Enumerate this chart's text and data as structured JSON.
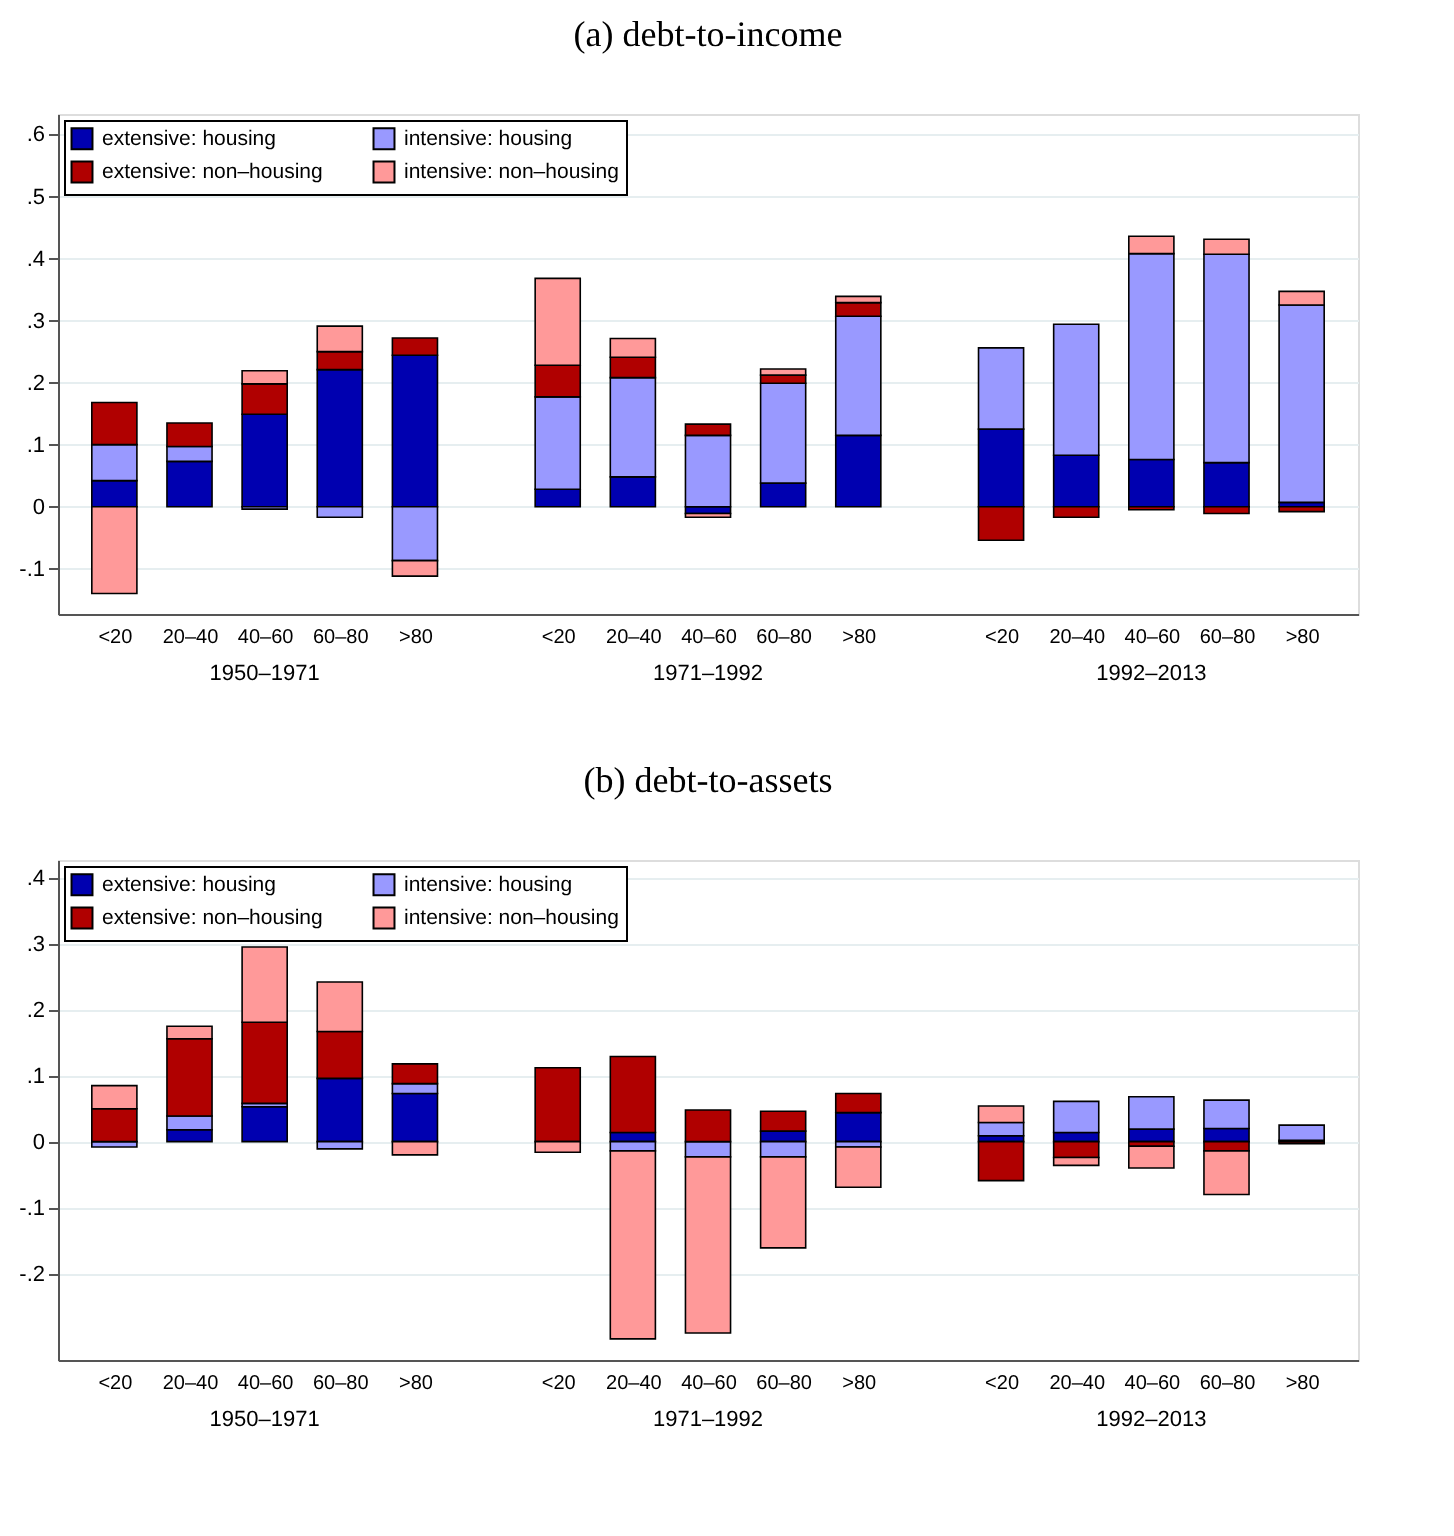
{
  "chart_data": [
    {
      "type": "bar",
      "title": "(a) debt-to-income",
      "stacked": true,
      "legend": "top left",
      "grid": "y",
      "categories": [
        "<20",
        "20–40",
        "40–60",
        "60–80",
        ">80",
        "<20",
        "20–40",
        "40–60",
        "60–80",
        ">80",
        "<20",
        "20–40",
        "40–60",
        "60–80",
        ">80"
      ],
      "annotations": [
        "1950–1971",
        "1971–1992",
        "1992–2013"
      ],
      "ylim": [
        -0.173,
        0.633
      ],
      "yticks": [
        {
          "value": -0.1,
          "label": "-.1"
        },
        0,
        {
          "value": 0.1,
          "label": ".1"
        },
        {
          "value": 0.2,
          "label": ".2"
        },
        {
          "value": 0.3,
          "label": ".3"
        },
        {
          "value": 0.4,
          "label": ".4"
        },
        {
          "value": 0.5,
          "label": ".5"
        },
        {
          "value": 0.6,
          "label": ".6"
        }
      ],
      "series": [
        {
          "name": "extensive: housing",
          "color": "#0000b0",
          "values": [
            0.042,
            0.073,
            0.149,
            0.221,
            0.244,
            0.028,
            0.048,
            -0.011,
            0.038,
            0.115,
            0.125,
            0.083,
            0.076,
            0.071,
            0.007
          ]
        },
        {
          "name": "intensive: housing",
          "color": "#9999ff",
          "values": [
            0.058,
            0.024,
            -0.004,
            -0.017,
            -0.087,
            0.149,
            0.16,
            0.115,
            0.161,
            0.192,
            0.131,
            0.211,
            0.332,
            0.336,
            0.318
          ]
        },
        {
          "name": "extensive: non–housing",
          "color": "#b00000",
          "values": [
            0.068,
            0.038,
            0.049,
            0.029,
            0.028,
            0.051,
            0.033,
            0.018,
            0.013,
            0.022,
            -0.054,
            -0.017,
            -0.005,
            -0.011,
            -0.008
          ]
        },
        {
          "name": "intensive: non–housing",
          "color": "#ff9999",
          "values": [
            -0.14,
            null,
            0.021,
            0.041,
            -0.025,
            0.14,
            0.03,
            -0.006,
            0.01,
            0.01,
            null,
            null,
            0.028,
            0.024,
            0.022
          ]
        }
      ]
    },
    {
      "type": "bar",
      "title": "(b) debt-to-assets",
      "stacked": true,
      "legend": "top left",
      "grid": "y",
      "categories": [
        "<20",
        "20–40",
        "40–60",
        "60–80",
        ">80",
        "<20",
        "20–40",
        "40–60",
        "60–80",
        ">80",
        "<20",
        "20–40",
        "40–60",
        "60–80",
        ">80"
      ],
      "annotations": [
        "1950–1971",
        "1971–1992",
        "1992–2013"
      ],
      "ylim": [
        -0.331,
        0.427
      ],
      "yticks": [
        {
          "value": -0.2,
          "label": "-.2"
        },
        {
          "value": -0.1,
          "label": "-.1"
        },
        0,
        {
          "value": 0.1,
          "label": ".1"
        },
        {
          "value": 0.2,
          "label": ".2"
        },
        {
          "value": 0.3,
          "label": ".3"
        },
        {
          "value": 0.4,
          "label": ".4"
        }
      ],
      "series": [
        {
          "name": "extensive: housing",
          "color": "#0000b0",
          "values": [
            null,
            0.018,
            0.053,
            0.096,
            0.073,
            null,
            0.014,
            null,
            0.016,
            0.044,
            0.009,
            0.014,
            0.019,
            0.02,
            0.002
          ]
        },
        {
          "name": "intensive: housing",
          "color": "#9999ff",
          "values": [
            -0.008,
            0.021,
            0.005,
            -0.011,
            0.015,
            null,
            -0.014,
            -0.023,
            -0.023,
            -0.008,
            0.02,
            0.047,
            0.049,
            0.043,
            0.023
          ]
        },
        {
          "name": "extensive: non–housing",
          "color": "#b00000",
          "values": [
            0.05,
            0.117,
            0.123,
            0.071,
            0.03,
            0.112,
            0.115,
            0.048,
            0.03,
            0.029,
            -0.059,
            -0.024,
            -0.007,
            -0.014,
            -0.003
          ]
        },
        {
          "name": "intensive: non–housing",
          "color": "#ff9999",
          "values": [
            0.035,
            0.019,
            0.114,
            0.075,
            -0.02,
            -0.016,
            -0.285,
            -0.267,
            -0.138,
            -0.061,
            0.025,
            -0.012,
            -0.033,
            -0.066,
            null
          ]
        }
      ]
    }
  ]
}
